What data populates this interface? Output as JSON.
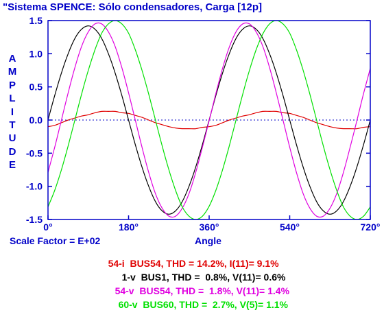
{
  "chart_data": {
    "type": "line",
    "title": "\"Sistema SPENCE: Sólo condensadores, Carga [12p]",
    "ylabel": "AMPLITUDE",
    "xlabel": "Angle",
    "scale_factor": "Scale Factor = E+02",
    "xlim": [
      0,
      720
    ],
    "ylim": [
      -1.5,
      1.5
    ],
    "x_ticks": [
      0,
      180,
      360,
      540,
      720
    ],
    "x_tick_labels": [
      "0°",
      "180°",
      "360°",
      "540°",
      "720°"
    ],
    "y_ticks": [
      1.5,
      1.0,
      0.5,
      0.0,
      -0.5,
      -1.0,
      -1.5
    ],
    "y_tick_labels": [
      "1.5",
      "1.0",
      "0.5",
      "0.0",
      "-0.5",
      "-1.0",
      "-1.5"
    ],
    "zero_line": true,
    "series": [
      {
        "name": "54-i  BUS54",
        "color": "#e00000",
        "stats": ", THD = 14.2%, I(11)= 9.1%",
        "x": [
          0,
          15,
          30,
          45,
          60,
          75,
          90,
          105,
          120,
          135,
          150,
          165,
          180,
          195,
          210,
          225,
          240,
          255,
          270,
          285,
          300,
          315,
          330,
          345,
          360,
          375,
          390,
          405,
          420,
          435,
          450,
          465,
          480,
          495,
          510,
          525,
          540,
          555,
          570,
          585,
          600,
          615,
          630,
          645,
          660,
          675,
          690,
          705,
          720
        ],
        "values": [
          -0.1,
          -0.08,
          -0.04,
          0.0,
          0.03,
          0.06,
          0.08,
          0.11,
          0.13,
          0.13,
          0.13,
          0.11,
          0.1,
          0.07,
          0.04,
          0.0,
          -0.04,
          -0.07,
          -0.1,
          -0.12,
          -0.13,
          -0.13,
          -0.13,
          -0.11,
          -0.1,
          -0.08,
          -0.04,
          0.0,
          0.03,
          0.06,
          0.08,
          0.11,
          0.13,
          0.13,
          0.13,
          0.11,
          0.1,
          0.07,
          0.04,
          0.0,
          -0.04,
          -0.07,
          -0.1,
          -0.12,
          -0.13,
          -0.13,
          -0.13,
          -0.11,
          -0.1
        ]
      },
      {
        "name": "1-v  BUS1",
        "color": "#000000",
        "stats": ", THD =  0.8%, V(11)= 0.6%",
        "x": [
          0,
          15,
          30,
          45,
          60,
          75,
          90,
          105,
          120,
          135,
          150,
          165,
          180,
          195,
          210,
          225,
          240,
          255,
          270,
          285,
          300,
          315,
          330,
          345,
          360,
          375,
          390,
          405,
          420,
          435,
          450,
          465,
          480,
          495,
          510,
          525,
          540,
          555,
          570,
          585,
          600,
          615,
          630,
          645,
          660,
          675,
          690,
          705,
          720
        ],
        "values": [
          0.0,
          0.37,
          0.71,
          1.0,
          1.23,
          1.37,
          1.42,
          1.37,
          1.23,
          1.0,
          0.71,
          0.37,
          0.0,
          -0.37,
          -0.71,
          -1.0,
          -1.23,
          -1.37,
          -1.42,
          -1.37,
          -1.23,
          -1.0,
          -0.71,
          -0.37,
          0.0,
          0.37,
          0.71,
          1.0,
          1.23,
          1.37,
          1.42,
          1.37,
          1.23,
          1.0,
          0.71,
          0.37,
          0.0,
          -0.37,
          -0.71,
          -1.0,
          -1.23,
          -1.37,
          -1.42,
          -1.37,
          -1.23,
          -1.0,
          -0.71,
          -0.37,
          0.0
        ]
      },
      {
        "name": "54-v  BUS54",
        "color": "#e000e0",
        "stats": ", THD =  1.8%, V(11)= 1.4%",
        "x": [
          0,
          15,
          30,
          45,
          60,
          75,
          90,
          105,
          120,
          135,
          150,
          165,
          180,
          195,
          210,
          225,
          240,
          255,
          270,
          285,
          300,
          315,
          330,
          345,
          360,
          375,
          390,
          405,
          420,
          435,
          450,
          465,
          480,
          495,
          510,
          525,
          540,
          555,
          570,
          585,
          600,
          615,
          630,
          645,
          660,
          675,
          690,
          705,
          720
        ],
        "values": [
          -0.79,
          -0.41,
          0.0,
          0.41,
          0.79,
          1.11,
          1.33,
          1.45,
          1.45,
          1.33,
          1.11,
          0.79,
          0.41,
          0.0,
          -0.41,
          -0.79,
          -1.11,
          -1.33,
          -1.45,
          -1.45,
          -1.33,
          -1.11,
          -0.79,
          -0.41,
          -0.01,
          0.4,
          0.78,
          1.1,
          1.33,
          1.45,
          1.45,
          1.33,
          1.11,
          0.79,
          0.41,
          0.0,
          -0.41,
          -0.79,
          -1.11,
          -1.33,
          -1.45,
          -1.45,
          -1.33,
          -1.11,
          -0.79,
          -0.41,
          -0.01,
          0.4,
          0.78
        ]
      },
      {
        "name": "60-v  BUS60",
        "color": "#00e000",
        "stats": ", THD =  2.7%, V(5)= 1.1%",
        "x": [
          0,
          15,
          30,
          45,
          60,
          75,
          90,
          105,
          120,
          135,
          150,
          165,
          180,
          195,
          210,
          225,
          240,
          255,
          270,
          285,
          300,
          315,
          330,
          345,
          360,
          375,
          390,
          405,
          420,
          435,
          450,
          465,
          480,
          495,
          510,
          525,
          540,
          555,
          570,
          585,
          600,
          615,
          630,
          645,
          660,
          675,
          690,
          705,
          720
        ],
        "values": [
          -1.31,
          -1.06,
          -0.75,
          -0.39,
          0.0,
          0.39,
          0.75,
          1.06,
          1.31,
          1.45,
          1.5,
          1.45,
          1.31,
          1.06,
          0.75,
          0.39,
          0.0,
          -0.39,
          -0.75,
          -1.06,
          -1.31,
          -1.45,
          -1.5,
          -1.45,
          -1.3,
          -1.06,
          -0.75,
          -0.39,
          0.0,
          0.39,
          0.75,
          1.06,
          1.3,
          1.45,
          1.5,
          1.45,
          1.31,
          1.06,
          0.75,
          0.39,
          0.0,
          -0.39,
          -0.75,
          -1.06,
          -1.31,
          -1.45,
          -1.5,
          -1.45,
          -1.31
        ]
      }
    ]
  }
}
